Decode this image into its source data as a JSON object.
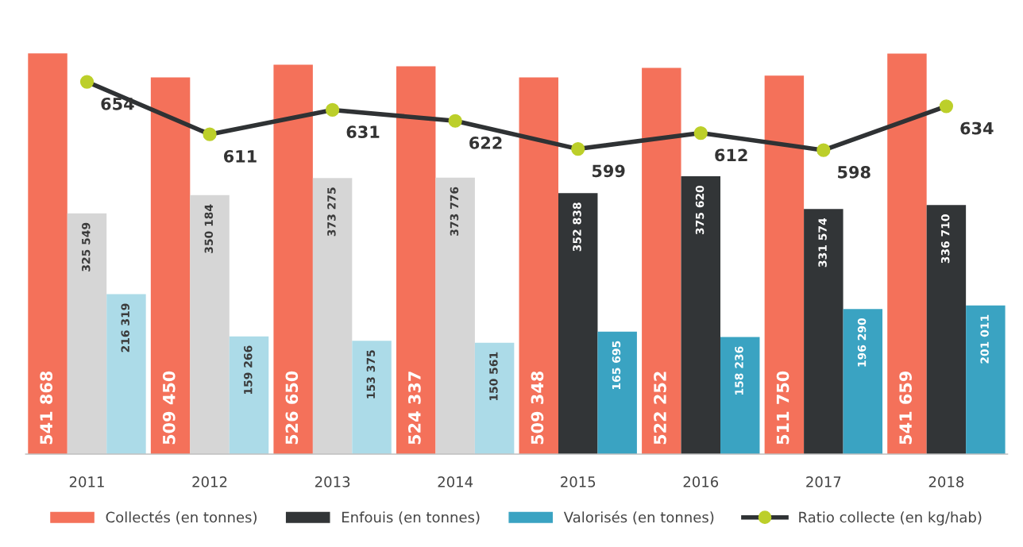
{
  "chart_data": {
    "type": "bar",
    "categories": [
      "2011",
      "2012",
      "2013",
      "2014",
      "2015",
      "2016",
      "2017",
      "2018"
    ],
    "series": [
      {
        "name": "Collectés (en tonnes)",
        "color": "#f4715a",
        "values": [
          541868,
          509450,
          526650,
          524337,
          509348,
          522252,
          511750,
          541659
        ],
        "value_labels": [
          "541 868",
          "509 450",
          "526 650",
          "524 337",
          "509 348",
          "522 252",
          "511 750",
          "541 659"
        ]
      },
      {
        "name": "Enfouis (en tonnes)",
        "color": "#323537",
        "colors": [
          "#d6d6d6",
          "#d6d6d6",
          "#d6d6d6",
          "#d6d6d6",
          "#323537",
          "#323537",
          "#323537",
          "#323537"
        ],
        "values": [
          325549,
          350184,
          373275,
          373776,
          352838,
          375620,
          331574,
          336710
        ],
        "value_labels": [
          "325 549",
          "350 184",
          "373 275",
          "373 776",
          "352 838",
          "375 620",
          "331 574",
          "336 710"
        ]
      },
      {
        "name": "Valorisés (en tonnes)",
        "color": "#3aa3c2",
        "colors": [
          "#acdbe8",
          "#acdbe8",
          "#acdbe8",
          "#acdbe8",
          "#3aa3c2",
          "#3aa3c2",
          "#3aa3c2",
          "#3aa3c2"
        ],
        "values": [
          216319,
          159266,
          153375,
          150561,
          165695,
          158236,
          196290,
          201011
        ],
        "value_labels": [
          "216 319",
          "159 266",
          "153 375",
          "150 561",
          "165 695",
          "158 236",
          "196 290",
          "201 011"
        ]
      },
      {
        "name": "Ratio collecte (en kg/hab)",
        "type": "line",
        "axis": "y2",
        "color": "#2f3234",
        "colors": [
          "#bccf2a",
          "#bccf2a",
          "#bccf2a",
          "#bccf2a",
          "#bccf2a",
          "#bccf2a",
          "#bccf2a",
          "#bccf2a"
        ],
        "values": [
          654,
          611,
          631,
          622,
          599,
          612,
          598,
          634
        ]
      }
    ],
    "data_labels": true,
    "tick_labels": "x",
    "marker": "circle",
    "line_style": "solid",
    "grid": false,
    "legend": "bottom"
  }
}
